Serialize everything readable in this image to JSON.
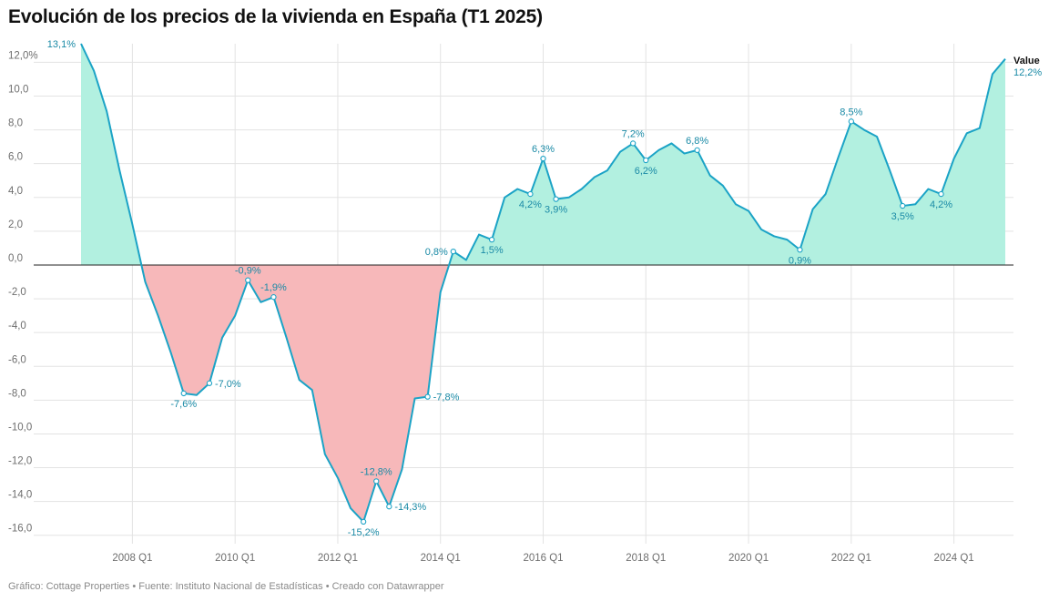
{
  "title": "Evolución de los precios de la vivienda en España (T1 2025)",
  "footer": "Gráfico: Cottage Properties • Fuente: Instituto Nacional de Estadísticas • Creado con Datawrapper",
  "colors": {
    "line": "#1ba3c6",
    "positive_area": "#b2f0e0",
    "negative_area": "#f7b8ba",
    "grid": "#e3e3e3",
    "zero_line": "#222222",
    "label": "#1a8aa6"
  },
  "chart_data": {
    "type": "area",
    "series": [
      {
        "name": "Value",
        "x": [
          2007.0,
          2007.25,
          2007.5,
          2007.75,
          2008.0,
          2008.25,
          2008.5,
          2008.75,
          2009.0,
          2009.25,
          2009.5,
          2009.75,
          2010.0,
          2010.25,
          2010.5,
          2010.75,
          2011.0,
          2011.25,
          2011.5,
          2011.75,
          2012.0,
          2012.25,
          2012.5,
          2012.75,
          2013.0,
          2013.25,
          2013.5,
          2013.75,
          2014.0,
          2014.25,
          2014.5,
          2014.75,
          2015.0,
          2015.25,
          2015.5,
          2015.75,
          2016.0,
          2016.25,
          2016.5,
          2016.75,
          2017.0,
          2017.25,
          2017.5,
          2017.75,
          2018.0,
          2018.25,
          2018.5,
          2018.75,
          2019.0,
          2019.25,
          2019.5,
          2019.75,
          2020.0,
          2020.25,
          2020.5,
          2020.75,
          2021.0,
          2021.25,
          2021.5,
          2021.75,
          2022.0,
          2022.25,
          2022.5,
          2022.75,
          2023.0,
          2023.25,
          2023.5,
          2023.75,
          2024.0,
          2024.25,
          2024.5,
          2024.75,
          2025.0
        ],
        "y": [
          13.1,
          11.5,
          9.1,
          5.6,
          2.4,
          -1.0,
          -3.0,
          -5.2,
          -7.6,
          -7.7,
          -7.0,
          -4.3,
          -3.0,
          -0.9,
          -2.2,
          -1.9,
          -4.3,
          -6.8,
          -7.4,
          -11.2,
          -12.6,
          -14.4,
          -15.2,
          -12.8,
          -14.3,
          -12.1,
          -7.9,
          -7.8,
          -1.6,
          0.8,
          0.3,
          1.8,
          1.5,
          4.0,
          4.5,
          4.2,
          6.3,
          3.9,
          4.0,
          4.5,
          5.2,
          5.6,
          6.7,
          7.2,
          6.2,
          6.8,
          7.2,
          6.6,
          6.8,
          5.3,
          4.7,
          3.6,
          3.2,
          2.1,
          1.7,
          1.5,
          0.9,
          3.3,
          4.2,
          6.4,
          8.5,
          8.0,
          7.6,
          5.6,
          3.5,
          3.6,
          4.5,
          4.2,
          6.3,
          7.8,
          8.1,
          11.3,
          12.2
        ]
      }
    ],
    "xticks": [
      {
        "x": 2008.0,
        "label": "2008 Q1"
      },
      {
        "x": 2010.0,
        "label": "2010 Q1"
      },
      {
        "x": 2012.0,
        "label": "2012 Q1"
      },
      {
        "x": 2014.0,
        "label": "2014 Q1"
      },
      {
        "x": 2016.0,
        "label": "2016 Q1"
      },
      {
        "x": 2018.0,
        "label": "2018 Q1"
      },
      {
        "x": 2020.0,
        "label": "2020 Q1"
      },
      {
        "x": 2022.0,
        "label": "2022 Q1"
      },
      {
        "x": 2024.0,
        "label": "2024 Q1"
      }
    ],
    "yticks": [
      {
        "y": 12,
        "label": "12,0%"
      },
      {
        "y": 10,
        "label": "10,0"
      },
      {
        "y": 8,
        "label": "8,0"
      },
      {
        "y": 6,
        "label": "6,0"
      },
      {
        "y": 4,
        "label": "4,0"
      },
      {
        "y": 2,
        "label": "2,0"
      },
      {
        "y": 0,
        "label": "0,0"
      },
      {
        "y": -2,
        "label": "-2,0"
      },
      {
        "y": -4,
        "label": "-4,0"
      },
      {
        "y": -6,
        "label": "-6,0"
      },
      {
        "y": -8,
        "label": "-8,0"
      },
      {
        "y": -10,
        "label": "-10,0"
      },
      {
        "y": -12,
        "label": "-12,0"
      },
      {
        "y": -14,
        "label": "-14,0"
      },
      {
        "y": -16,
        "label": "-16,0"
      }
    ],
    "ylim": [
      -16.5,
      13.1
    ],
    "xlim": [
      2007.0,
      2025.0
    ],
    "annotations": [
      {
        "x": 2007.0,
        "y": 13.1,
        "text": "13,1%",
        "pos": "left",
        "marker": false
      },
      {
        "x": 2009.0,
        "y": -7.6,
        "text": "-7,6%",
        "pos": "below",
        "marker": true
      },
      {
        "x": 2009.5,
        "y": -7.0,
        "text": "-7,0%",
        "pos": "right",
        "marker": true
      },
      {
        "x": 2010.25,
        "y": -0.9,
        "text": "-0,9%",
        "pos": "above",
        "marker": true
      },
      {
        "x": 2010.75,
        "y": -1.9,
        "text": "-1,9%",
        "pos": "above",
        "marker": true
      },
      {
        "x": 2012.5,
        "y": -15.2,
        "text": "-15,2%",
        "pos": "below",
        "marker": true
      },
      {
        "x": 2012.75,
        "y": -12.8,
        "text": "-12,8%",
        "pos": "above",
        "marker": true
      },
      {
        "x": 2013.0,
        "y": -14.3,
        "text": "-14,3%",
        "pos": "right",
        "marker": true
      },
      {
        "x": 2013.75,
        "y": -7.8,
        "text": "-7,8%",
        "pos": "right",
        "marker": true
      },
      {
        "x": 2014.25,
        "y": 0.8,
        "text": "0,8%",
        "pos": "left",
        "marker": true
      },
      {
        "x": 2015.0,
        "y": 1.5,
        "text": "1,5%",
        "pos": "below",
        "marker": true
      },
      {
        "x": 2015.75,
        "y": 4.2,
        "text": "4,2%",
        "pos": "below",
        "marker": true
      },
      {
        "x": 2016.0,
        "y": 6.3,
        "text": "6,3%",
        "pos": "above",
        "marker": true
      },
      {
        "x": 2016.25,
        "y": 3.9,
        "text": "3,9%",
        "pos": "below",
        "marker": true
      },
      {
        "x": 2017.75,
        "y": 7.2,
        "text": "7,2%",
        "pos": "above",
        "marker": true
      },
      {
        "x": 2018.0,
        "y": 6.2,
        "text": "6,2%",
        "pos": "below",
        "marker": true
      },
      {
        "x": 2019.0,
        "y": 6.8,
        "text": "6,8%",
        "pos": "above",
        "marker": true
      },
      {
        "x": 2021.0,
        "y": 0.9,
        "text": "0,9%",
        "pos": "below",
        "marker": true
      },
      {
        "x": 2022.0,
        "y": 8.5,
        "text": "8,5%",
        "pos": "above",
        "marker": true
      },
      {
        "x": 2023.0,
        "y": 3.5,
        "text": "3,5%",
        "pos": "below",
        "marker": true
      },
      {
        "x": 2023.75,
        "y": 4.2,
        "text": "4,2%",
        "pos": "below",
        "marker": true
      }
    ],
    "end_label": {
      "series": "Value",
      "value": "12,2%"
    },
    "grid": true,
    "legend": "none"
  }
}
